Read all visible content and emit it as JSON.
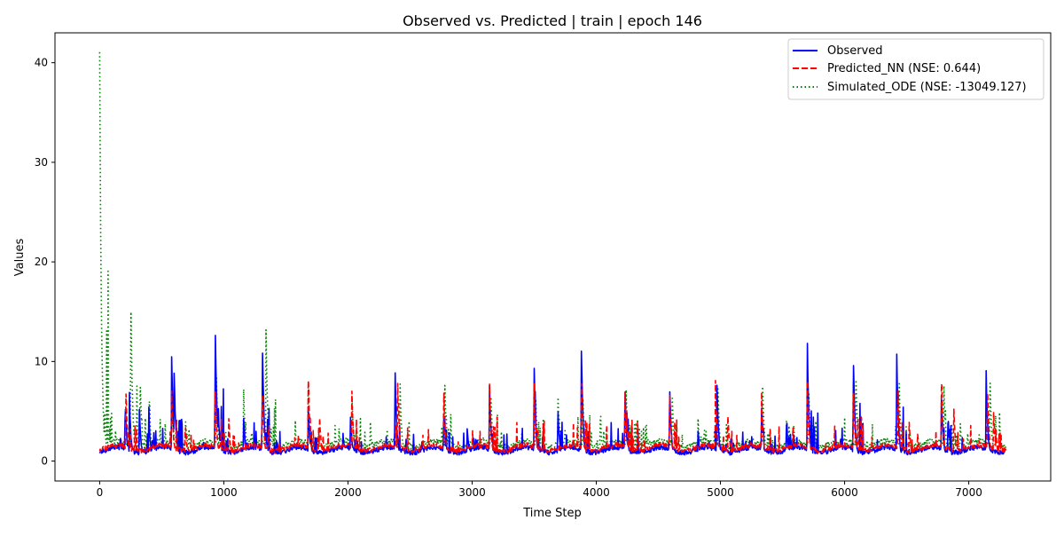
{
  "chart_data": {
    "type": "line",
    "title": "Observed vs. Predicted | train | epoch 146",
    "xlabel": "Time Step",
    "ylabel": "Values",
    "xlim": [
      -360,
      7660
    ],
    "ylim": [
      -2.0,
      43.0
    ],
    "grid": false,
    "legend_position": "top-right",
    "x_ticks": [
      0,
      1000,
      2000,
      3000,
      4000,
      5000,
      6000,
      7000
    ],
    "y_ticks": [
      0,
      10,
      20,
      30,
      40
    ],
    "x_tick_labels": [
      "0",
      "1000",
      "2000",
      "3000",
      "4000",
      "5000",
      "6000",
      "7000"
    ],
    "y_tick_labels": [
      "0",
      "10",
      "20",
      "30",
      "40"
    ],
    "n_points": 7300,
    "series": [
      {
        "name": "Observed",
        "color": "#0000ff",
        "style": "solid",
        "baseline": 0.8,
        "peaks": [
          [
            165,
            3.0
          ],
          [
            205,
            6.6
          ],
          [
            240,
            6.0
          ],
          [
            320,
            5.0
          ],
          [
            395,
            5.0
          ],
          [
            580,
            10.4
          ],
          [
            600,
            9.0
          ],
          [
            930,
            14.7
          ],
          [
            955,
            5.5
          ],
          [
            1160,
            4.3
          ],
          [
            1310,
            12.3
          ],
          [
            1340,
            2.8
          ],
          [
            1680,
            5.3
          ],
          [
            1960,
            2.7
          ],
          [
            2020,
            4.5
          ],
          [
            2380,
            9.0
          ],
          [
            2770,
            5.2
          ],
          [
            2960,
            3.4
          ],
          [
            3140,
            7.4
          ],
          [
            3500,
            9.2
          ],
          [
            3880,
            11.2
          ],
          [
            3690,
            5.8
          ],
          [
            4230,
            7.8
          ],
          [
            4590,
            8.0
          ],
          [
            4820,
            3.0
          ],
          [
            4970,
            8.7
          ],
          [
            5330,
            6.2
          ],
          [
            5530,
            4.0
          ],
          [
            5700,
            11.7
          ],
          [
            6070,
            11.3
          ],
          [
            6420,
            10.7
          ],
          [
            6780,
            6.6
          ],
          [
            7140,
            8.9
          ]
        ],
        "points": [
          [
            0,
            0.6
          ],
          [
            100,
            1.0
          ],
          [
            400,
            0.5
          ],
          [
            1100,
            0.3
          ],
          [
            1500,
            0.3
          ],
          [
            2700,
            0.3
          ],
          [
            3650,
            0.2
          ],
          [
            4450,
            0.4
          ],
          [
            5500,
            0.2
          ],
          [
            7300,
            0.1
          ]
        ]
      },
      {
        "name": "Predicted_NN  (NSE: 0.644)",
        "color": "#ff0000",
        "style": "dashed",
        "baseline": 1.0,
        "peaks": [
          [
            210,
            7.9
          ],
          [
            580,
            7.1
          ],
          [
            690,
            4.0
          ],
          [
            930,
            7.9
          ],
          [
            1040,
            4.2
          ],
          [
            1310,
            7.8
          ],
          [
            1680,
            7.9
          ],
          [
            1770,
            4.8
          ],
          [
            2030,
            7.9
          ],
          [
            2400,
            7.9
          ],
          [
            2770,
            7.9
          ],
          [
            3140,
            7.9
          ],
          [
            3500,
            7.9
          ],
          [
            3880,
            7.9
          ],
          [
            4230,
            7.8
          ],
          [
            4330,
            4.5
          ],
          [
            4590,
            7.7
          ],
          [
            4960,
            7.9
          ],
          [
            5060,
            4.6
          ],
          [
            5330,
            7.9
          ],
          [
            5700,
            7.9
          ],
          [
            6070,
            7.9
          ],
          [
            6430,
            7.9
          ],
          [
            6520,
            3.8
          ],
          [
            6780,
            7.9
          ],
          [
            6880,
            5.3
          ],
          [
            7150,
            7.9
          ],
          [
            7200,
            5.0
          ]
        ],
        "points": [
          [
            0,
            0.8
          ],
          [
            7300,
            0.9
          ]
        ]
      },
      {
        "name": "Simulated_ODE (NSE: -13049.127)",
        "color": "#008000",
        "style": "dotted",
        "baseline": 1.4,
        "peaks": [
          [
            0,
            41.2
          ],
          [
            20,
            8.0
          ],
          [
            40,
            4.0
          ],
          [
            250,
            17.5
          ],
          [
            325,
            9.2
          ],
          [
            400,
            6.0
          ],
          [
            580,
            7.2
          ],
          [
            690,
            4.6
          ],
          [
            940,
            8.5
          ],
          [
            1160,
            7.2
          ],
          [
            1340,
            13.2
          ],
          [
            1360,
            5.2
          ],
          [
            1680,
            7.5
          ],
          [
            2030,
            7.5
          ],
          [
            2180,
            4.0
          ],
          [
            2420,
            7.6
          ],
          [
            2780,
            7.6
          ],
          [
            3150,
            7.5
          ],
          [
            3510,
            7.4
          ],
          [
            3690,
            7.3
          ],
          [
            3890,
            7.4
          ],
          [
            4030,
            4.6
          ],
          [
            4240,
            7.3
          ],
          [
            4330,
            4.8
          ],
          [
            4610,
            7.3
          ],
          [
            4820,
            4.1
          ],
          [
            4980,
            7.4
          ],
          [
            5340,
            7.6
          ],
          [
            5530,
            4.9
          ],
          [
            5710,
            7.7
          ],
          [
            6090,
            9.6
          ],
          [
            6440,
            7.7
          ],
          [
            6800,
            7.6
          ],
          [
            6930,
            4.2
          ],
          [
            7170,
            9.2
          ]
        ],
        "points": [
          [
            0,
            1.0
          ],
          [
            7300,
            1.2
          ]
        ]
      }
    ]
  }
}
